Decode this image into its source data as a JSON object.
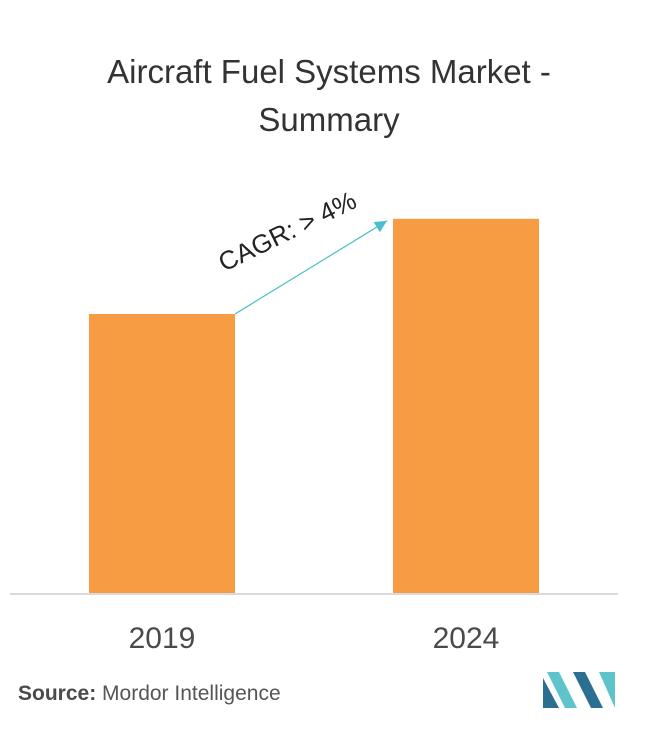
{
  "title_line1": "Aircraft Fuel Systems Market -",
  "title_line2": "Summary",
  "source": {
    "label": "Source:",
    "text": "Mordor Intelligence"
  },
  "annotation": {
    "text": "CAGR: > 4%"
  },
  "colors": {
    "bar": "#f89c44",
    "arrow": "#4bbfc9",
    "axis": "#d9d9d9",
    "logo_dark": "#2a6f8f",
    "logo_light": "#5fc3cc"
  },
  "logo_icon": "mordor-intelligence-logo-icon",
  "chart_data": {
    "type": "bar",
    "title": "Aircraft Fuel Systems Market - Summary",
    "categories": [
      "2019",
      "2024"
    ],
    "values": [
      1.0,
      1.34
    ],
    "ylim": [
      0,
      1.4
    ],
    "grid": false,
    "legend": "none",
    "annotations": [
      "CAGR: > 4%"
    ],
    "value_note": "relative magnitudes estimated from bar heights; no numeric values printed"
  }
}
